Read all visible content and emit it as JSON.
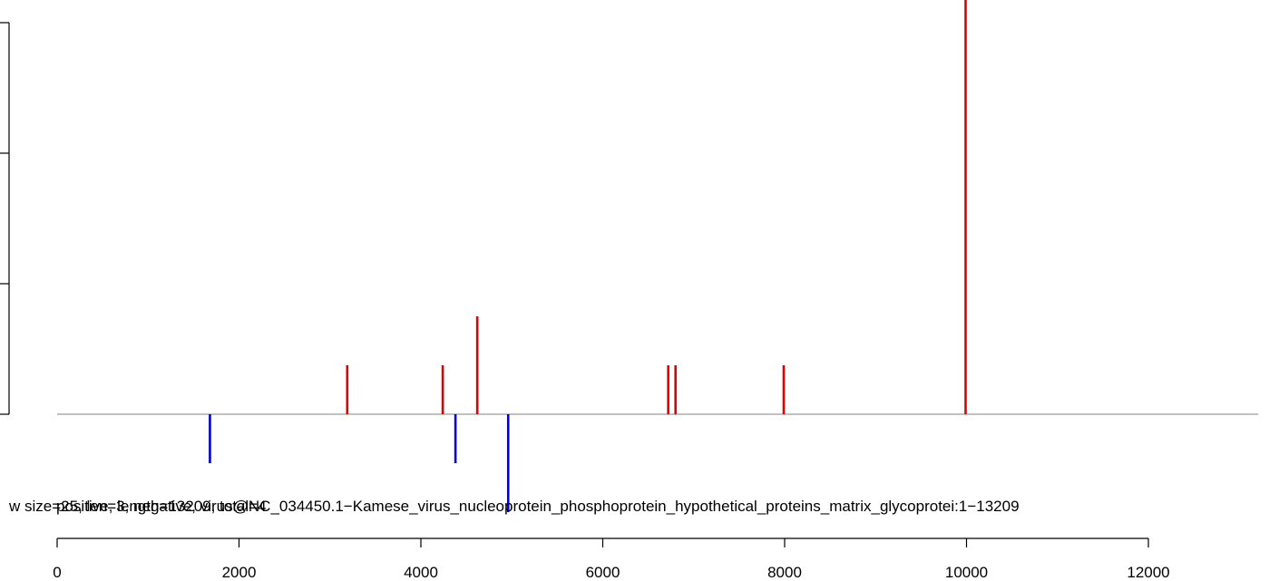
{
  "chart_data": {
    "type": "bar",
    "title": "",
    "xlabel": "",
    "ylabel": "",
    "xlim": [
      0,
      13209
    ],
    "x_ticks": [
      0,
      2000,
      4000,
      6000,
      8000,
      10000,
      12000
    ],
    "caption": "w size=25, len=3, negative, virus@NC_034450.1−Kamese_virus_nucleoprotein_phosphoprotein_hypothetical_proteins_matrix_glycoprotei:1−13209",
    "caption_overlap": "positive, length=13209, total=4",
    "colors": {
      "positive": "#e00000",
      "negative": "#0000e0",
      "baseline": "#808080",
      "axis": "#000000"
    },
    "series": [
      {
        "name": "",
        "color": "#e00000",
        "points": [
          {
            "x": 3190,
            "y": 1
          },
          {
            "x": 4240,
            "y": 1
          },
          {
            "x": 4620,
            "y": 2
          },
          {
            "x": 6720,
            "y": 1
          },
          {
            "x": 6800,
            "y": 1
          },
          {
            "x": 7990,
            "y": 1
          },
          {
            "x": 9990,
            "y": 10
          }
        ]
      },
      {
        "name": "",
        "color": "#0000e0",
        "points": [
          {
            "x": 1680,
            "y": -1
          },
          {
            "x": 4380,
            "y": -1
          },
          {
            "x": 4960,
            "y": -2
          }
        ]
      }
    ]
  }
}
